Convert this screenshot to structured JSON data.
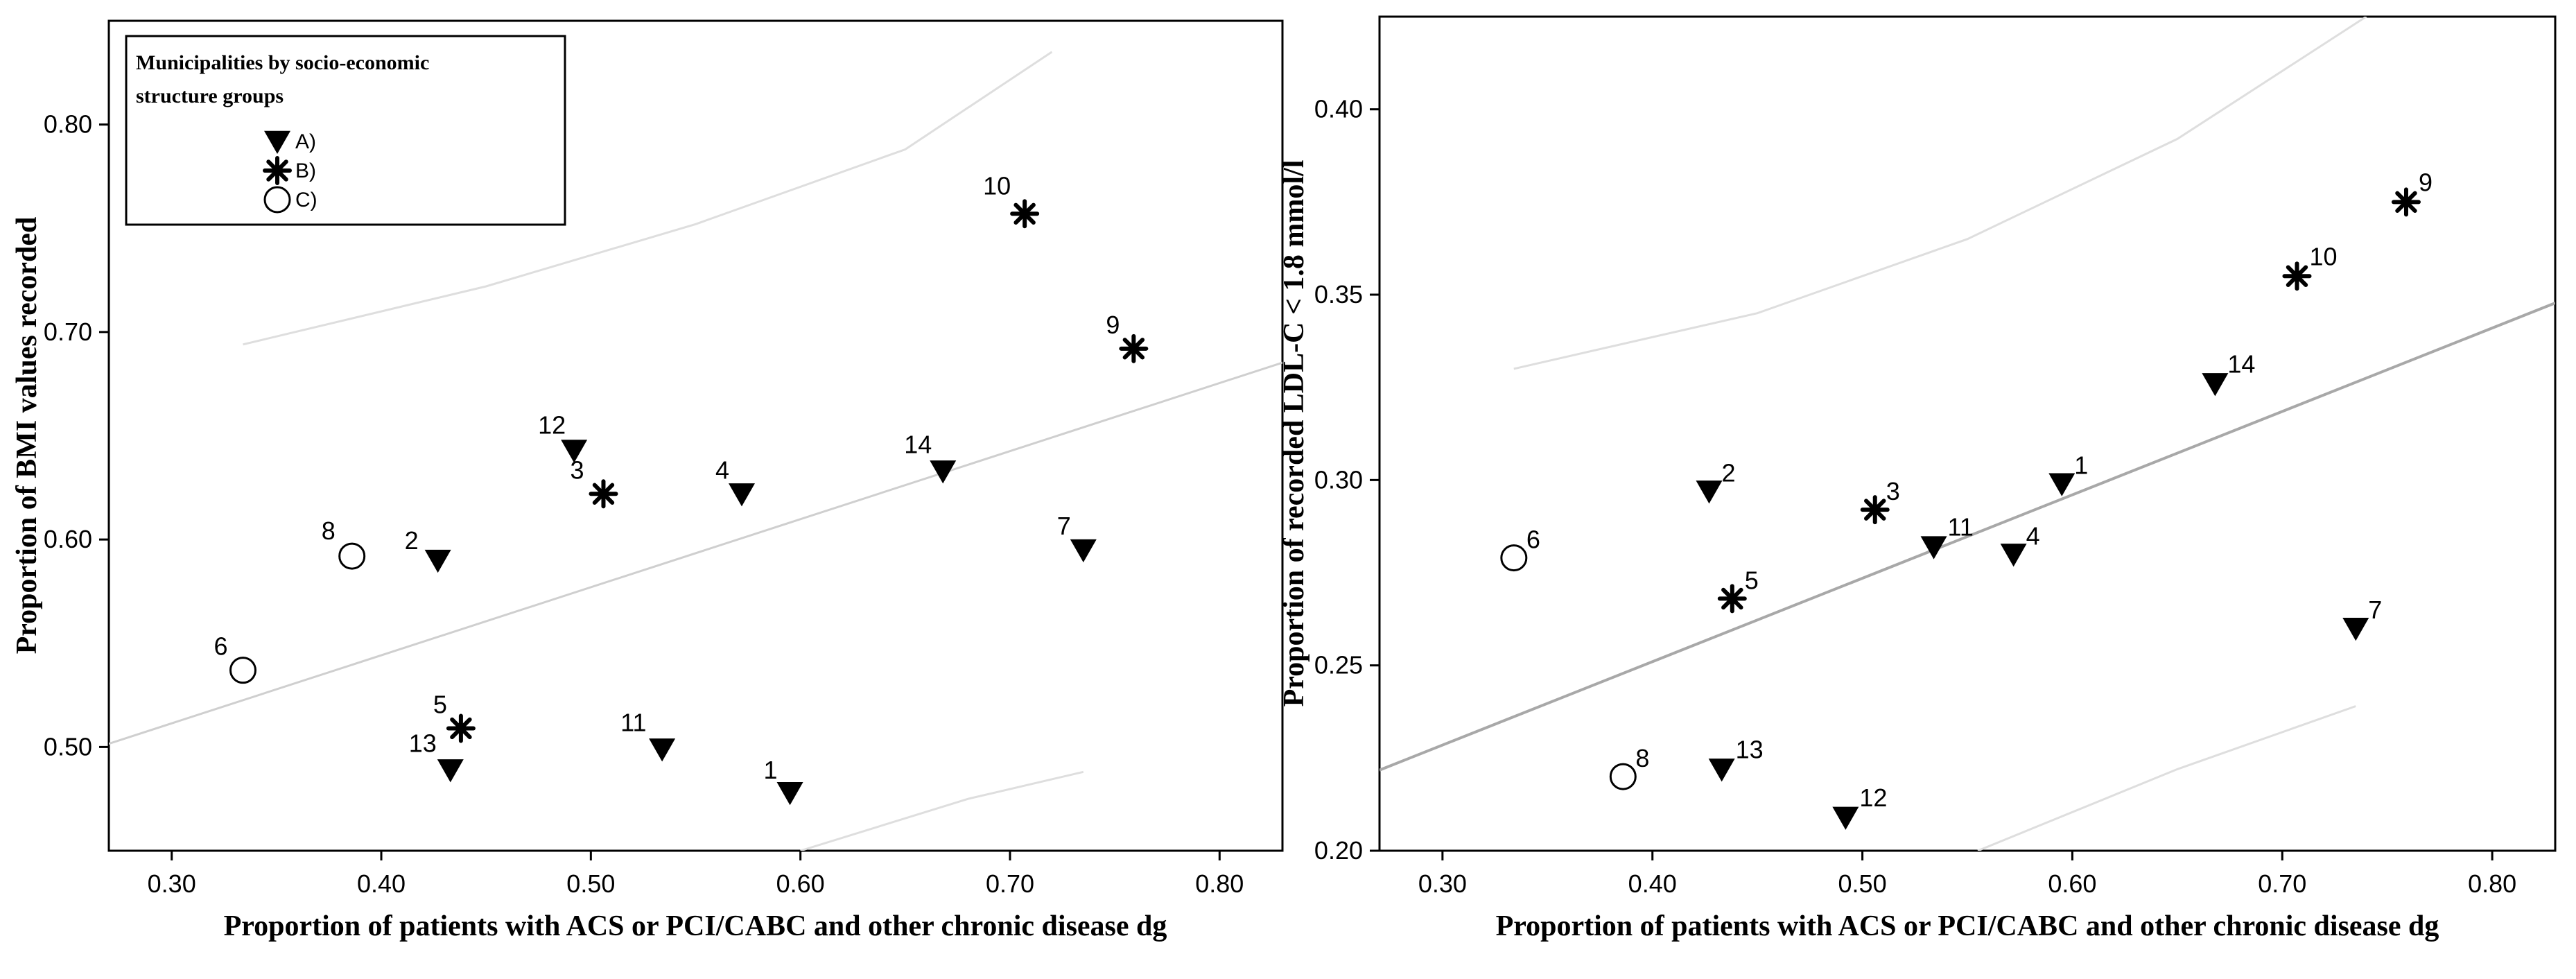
{
  "chart_data": [
    {
      "type": "scatter",
      "title": "",
      "xlabel": "Proportion of patients with ACS or PCI/CABC and other chronic disease dg",
      "ylabel": "Proportion of BMI values recorded",
      "xlim": [
        0.27,
        0.83
      ],
      "ylim": [
        0.45,
        0.85
      ],
      "xticks": [
        "0.30",
        "0.40",
        "0.50",
        "0.60",
        "0.70",
        "0.80"
      ],
      "yticks": [
        "0.50",
        "0.60",
        "0.70",
        "0.80"
      ],
      "grid": false,
      "legend": {
        "title_lines": [
          "Municipalities by socio-economic",
          "structure groups"
        ],
        "placement": "top-left",
        "entries": [
          {
            "group": "A",
            "label": "A)",
            "marker": "triangle-down"
          },
          {
            "group": "B",
            "label": "B)",
            "marker": "asterisk"
          },
          {
            "group": "C",
            "label": "C)",
            "marker": "circle-open"
          }
        ]
      },
      "points": [
        {
          "label": "1",
          "group": "A",
          "x": 0.595,
          "y": 0.478
        },
        {
          "label": "2",
          "group": "A",
          "x": 0.427,
          "y": 0.59
        },
        {
          "label": "3",
          "group": "B",
          "x": 0.506,
          "y": 0.622
        },
        {
          "label": "4",
          "group": "A",
          "x": 0.572,
          "y": 0.622
        },
        {
          "label": "5",
          "group": "B",
          "x": 0.438,
          "y": 0.509
        },
        {
          "label": "6",
          "group": "C",
          "x": 0.334,
          "y": 0.537
        },
        {
          "label": "7",
          "group": "A",
          "x": 0.735,
          "y": 0.595
        },
        {
          "label": "8",
          "group": "C",
          "x": 0.386,
          "y": 0.592
        },
        {
          "label": "9",
          "group": "B",
          "x": 0.759,
          "y": 0.692
        },
        {
          "label": "10",
          "group": "B",
          "x": 0.707,
          "y": 0.757
        },
        {
          "label": "11",
          "group": "A",
          "x": 0.534,
          "y": 0.499
        },
        {
          "label": "12",
          "group": "A",
          "x": 0.492,
          "y": 0.643
        },
        {
          "label": "13",
          "group": "A",
          "x": 0.433,
          "y": 0.489
        },
        {
          "label": "14",
          "group": "A",
          "x": 0.668,
          "y": 0.633
        }
      ],
      "fit_line": {
        "slope": 0.328,
        "intercept": 0.413
      },
      "ci_upper": [
        [
          0.334,
          0.694
        ],
        [
          0.45,
          0.722
        ],
        [
          0.55,
          0.752
        ],
        [
          0.65,
          0.788
        ],
        [
          0.72,
          0.835
        ]
      ],
      "ci_lower": [
        [
          0.6,
          0.45
        ],
        [
          0.68,
          0.475
        ],
        [
          0.735,
          0.488
        ]
      ]
    },
    {
      "type": "scatter",
      "title": "",
      "xlabel": "Proportion of patients with ACS or PCI/CABC and other chronic disease dg",
      "ylabel": "Proportion of recorded LDL-C < 1.8 mmol/l",
      "xlim": [
        0.27,
        0.83
      ],
      "ylim": [
        0.2,
        0.425
      ],
      "xticks": [
        "0.30",
        "0.40",
        "0.50",
        "0.60",
        "0.70",
        "0.80"
      ],
      "yticks": [
        "0.20",
        "0.25",
        "0.30",
        "0.35",
        "0.40"
      ],
      "grid": false,
      "points": [
        {
          "label": "1",
          "group": "A",
          "x": 0.595,
          "y": 0.299
        },
        {
          "label": "2",
          "group": "A",
          "x": 0.427,
          "y": 0.297
        },
        {
          "label": "3",
          "group": "B",
          "x": 0.506,
          "y": 0.292
        },
        {
          "label": "4",
          "group": "A",
          "x": 0.572,
          "y": 0.28
        },
        {
          "label": "5",
          "group": "B",
          "x": 0.438,
          "y": 0.268
        },
        {
          "label": "6",
          "group": "C",
          "x": 0.334,
          "y": 0.279
        },
        {
          "label": "7",
          "group": "A",
          "x": 0.735,
          "y": 0.26
        },
        {
          "label": "8",
          "group": "C",
          "x": 0.386,
          "y": 0.22
        },
        {
          "label": "9",
          "group": "B",
          "x": 0.759,
          "y": 0.375
        },
        {
          "label": "10",
          "group": "B",
          "x": 0.707,
          "y": 0.355
        },
        {
          "label": "11",
          "group": "A",
          "x": 0.534,
          "y": 0.282
        },
        {
          "label": "12",
          "group": "A",
          "x": 0.492,
          "y": 0.209
        },
        {
          "label": "13",
          "group": "A",
          "x": 0.433,
          "y": 0.222
        },
        {
          "label": "14",
          "group": "A",
          "x": 0.668,
          "y": 0.326
        }
      ],
      "fit_line": {
        "slope": 0.225,
        "intercept": 0.161
      },
      "ci_upper": [
        [
          0.334,
          0.33
        ],
        [
          0.45,
          0.345
        ],
        [
          0.55,
          0.365
        ],
        [
          0.65,
          0.392
        ],
        [
          0.74,
          0.425
        ]
      ],
      "ci_lower": [
        [
          0.555,
          0.2
        ],
        [
          0.65,
          0.222
        ],
        [
          0.735,
          0.239
        ]
      ]
    }
  ],
  "colors": {
    "fit_left": "#cfcfcf",
    "fit_right": "#a8a8a8",
    "ci": "#dedede",
    "marker": "#000000"
  }
}
